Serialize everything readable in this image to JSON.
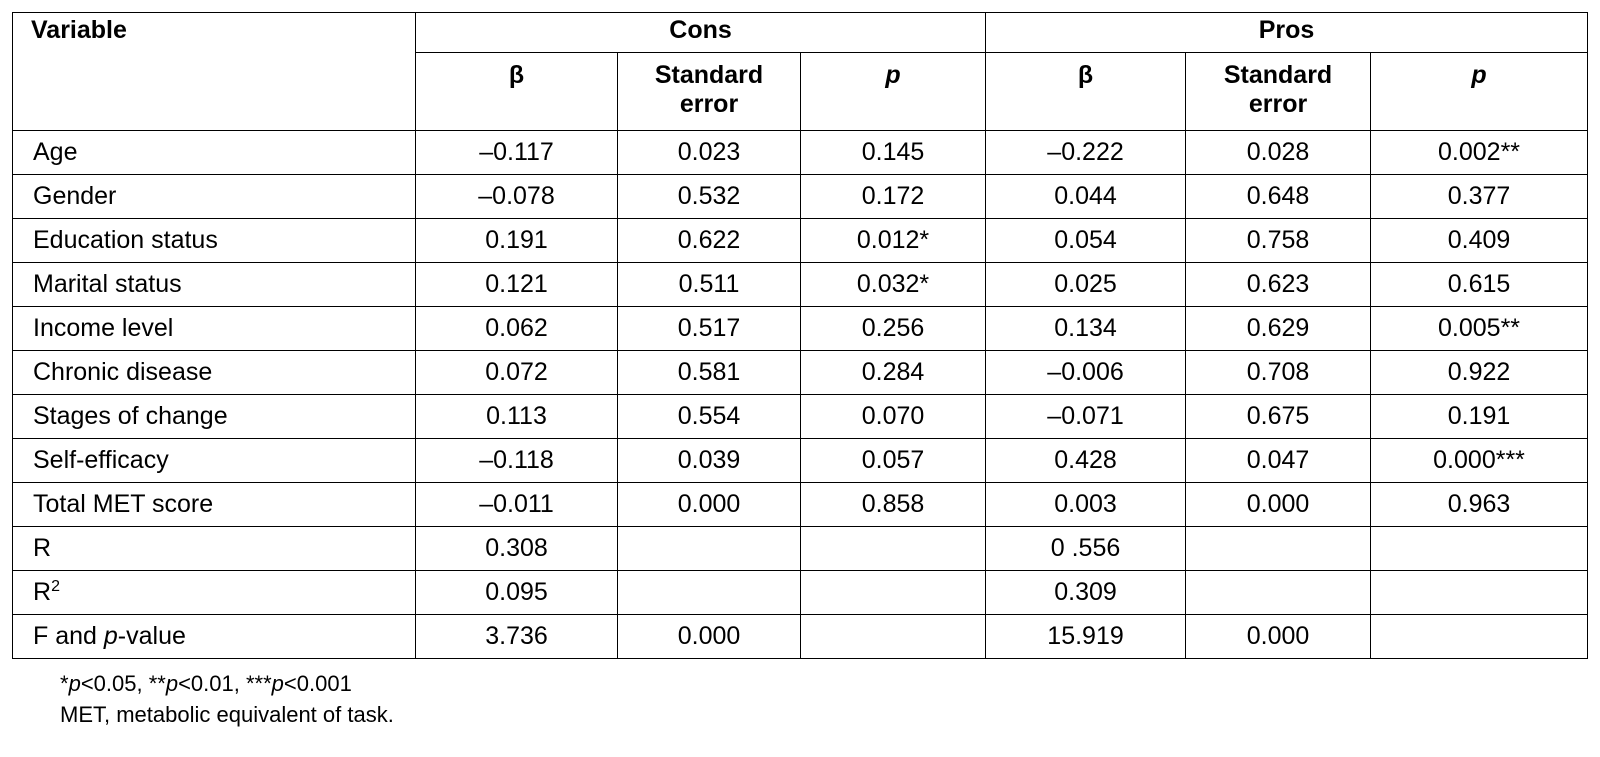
{
  "table": {
    "header": {
      "variable": "Variable",
      "groups": [
        "Cons",
        "Pros"
      ],
      "columns": [
        "β",
        "Standard error",
        {
          "text": "p",
          "style": "italic"
        },
        "β",
        "Standard error",
        {
          "text": "p",
          "style": "italic"
        }
      ]
    },
    "rows": [
      {
        "label": "Age",
        "cells": [
          "–0.117",
          "0.023",
          "0.145",
          "–0.222",
          "0.028",
          "0.002**"
        ]
      },
      {
        "label": "Gender",
        "cells": [
          "–0.078",
          "0.532",
          "0.172",
          "0.044",
          "0.648",
          "0.377"
        ]
      },
      {
        "label": "Education status",
        "cells": [
          "0.191",
          "0.622",
          "0.012*",
          "0.054",
          "0.758",
          "0.409"
        ]
      },
      {
        "label": "Marital status",
        "cells": [
          "0.121",
          "0.511",
          "0.032*",
          "0.025",
          "0.623",
          "0.615"
        ]
      },
      {
        "label": "Income level",
        "cells": [
          "0.062",
          "0.517",
          "0.256",
          "0.134",
          "0.629",
          "0.005**"
        ]
      },
      {
        "label": "Chronic disease",
        "cells": [
          "0.072",
          "0.581",
          "0.284",
          "–0.006",
          "0.708",
          "0.922"
        ]
      },
      {
        "label": "Stages of change",
        "cells": [
          "0.113",
          "0.554",
          "0.070",
          "–0.071",
          "0.675",
          "0.191"
        ]
      },
      {
        "label": "Self-efficacy",
        "cells": [
          "–0.118",
          "0.039",
          "0.057",
          "0.428",
          "0.047",
          "0.000***"
        ]
      },
      {
        "label": "Total MET score",
        "cells": [
          "–0.011",
          "0.000",
          "0.858",
          "0.003",
          "0.000",
          "0.963"
        ]
      },
      {
        "label": "R",
        "cells": [
          "0.308",
          null,
          null,
          "0 .556",
          null,
          null
        ]
      },
      {
        "label": [
          "R",
          {
            "text": "2",
            "style": "sup"
          }
        ],
        "cells": [
          "0.095",
          null,
          null,
          "0.309",
          null,
          null
        ]
      },
      {
        "label": [
          "F and ",
          {
            "text": "p",
            "style": "italic"
          },
          "-value"
        ],
        "cells": [
          "3.736",
          "0.000",
          null,
          "15.919",
          "0.000",
          null
        ]
      }
    ]
  },
  "footnotes": [
    [
      "*",
      {
        "text": "p",
        "style": "italic"
      },
      "<0.05, **",
      {
        "text": "p",
        "style": "italic"
      },
      "<0.01, ***",
      {
        "text": "p",
        "style": "italic"
      },
      "<0.001"
    ],
    "MET, metabolic equivalent of task."
  ]
}
